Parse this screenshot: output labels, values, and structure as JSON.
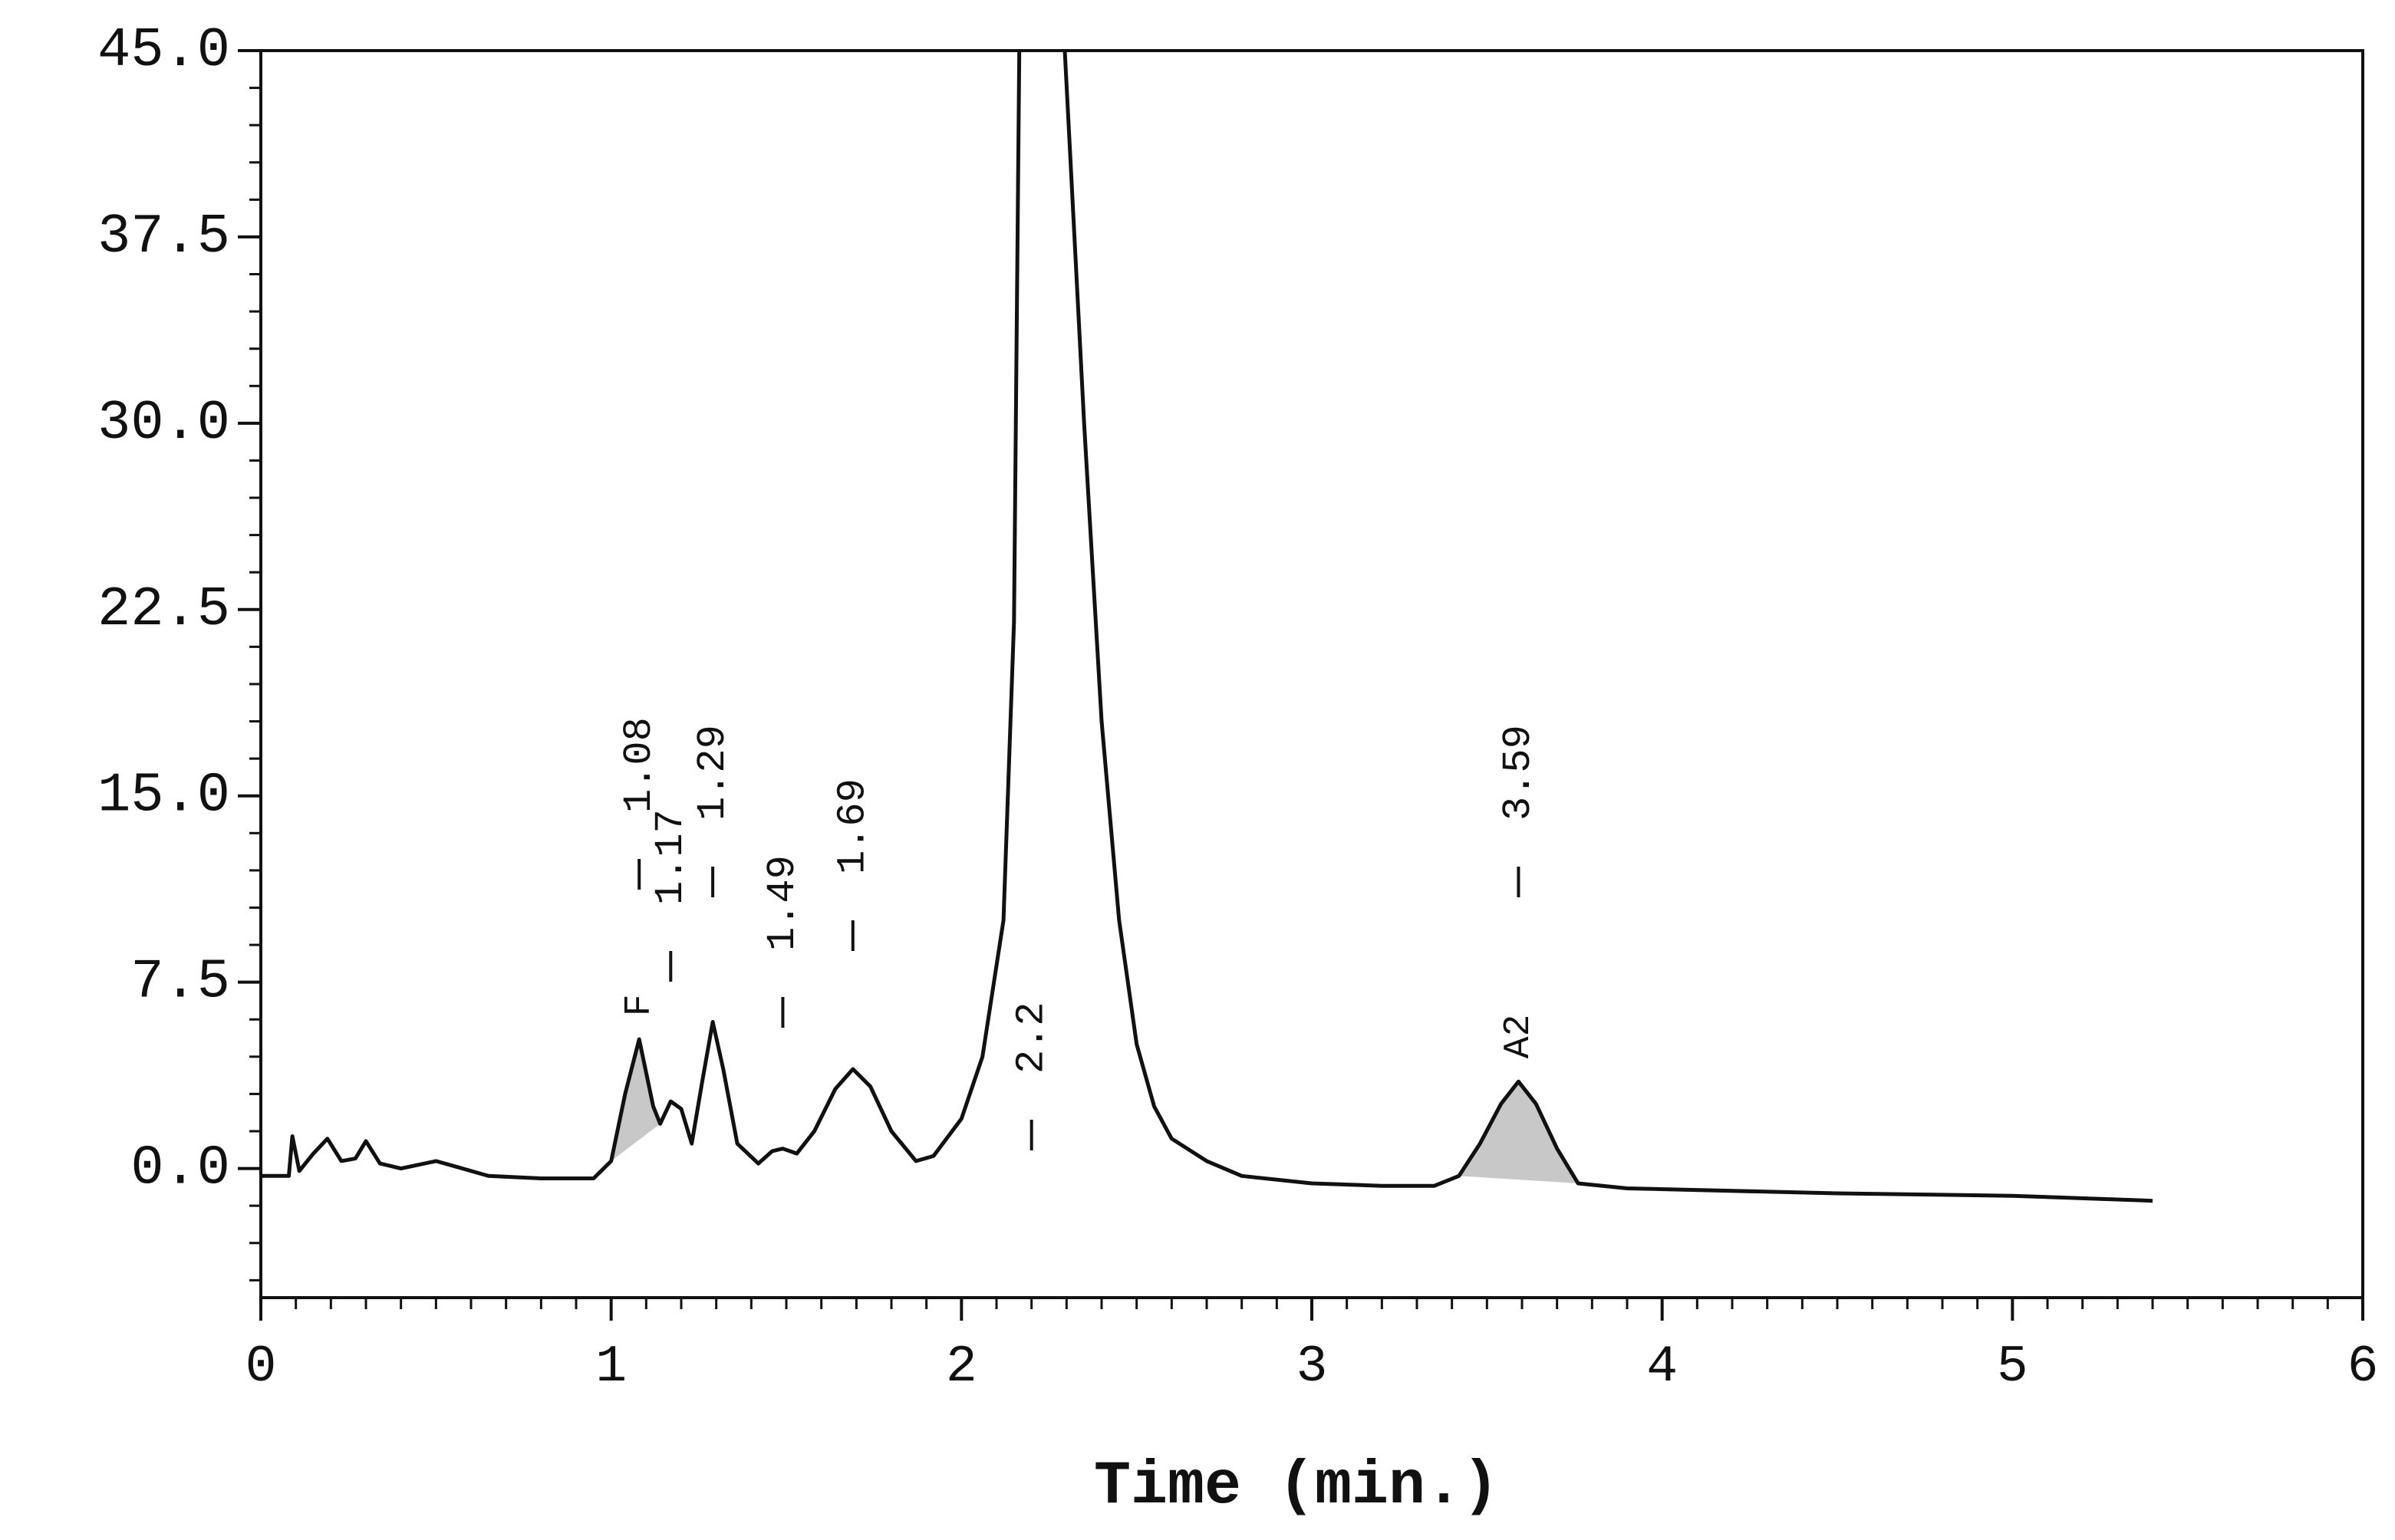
{
  "chart_data": {
    "type": "line",
    "x_label": "Time (min.)",
    "xlim": [
      0,
      6
    ],
    "xticks": [
      0,
      1,
      2,
      3,
      4,
      5,
      6
    ],
    "ylim": [
      -5.2,
      45
    ],
    "yticks": [
      {
        "value": 0,
        "label": "0.0"
      },
      {
        "value": 7.5,
        "label": "7.5"
      },
      {
        "value": 15,
        "label": "15.0"
      },
      {
        "value": 22.5,
        "label": "22.5"
      },
      {
        "value": 30,
        "label": "30.0"
      },
      {
        "value": 37.5,
        "label": "37.5"
      },
      {
        "value": 45,
        "label": "45.0"
      }
    ],
    "color": "#111111",
    "shade_color": "#c8c8c8",
    "series": [
      {
        "x": [
          0,
          0.08,
          0.09,
          0.11,
          0.15,
          0.19,
          0.23,
          0.27,
          0.3,
          0.34,
          0.4,
          0.5,
          0.55,
          0.65,
          0.8,
          0.95,
          1.0,
          1.04,
          1.08,
          1.12,
          1.14,
          1.17,
          1.2,
          1.23,
          1.26,
          1.29,
          1.32,
          1.36,
          1.42,
          1.46,
          1.49,
          1.53,
          1.58,
          1.64,
          1.69,
          1.74,
          1.8,
          1.87,
          1.92,
          2.0,
          2.06,
          2.12,
          2.15,
          2.165,
          2.23,
          2.295,
          2.35,
          2.4,
          2.45,
          2.5,
          2.55,
          2.6,
          2.7,
          2.8,
          3.0,
          3.2,
          3.35,
          3.42,
          3.48,
          3.54,
          3.59,
          3.64,
          3.7,
          3.76,
          3.9,
          4.5,
          5.0,
          5.4
        ],
        "values": [
          -0.3,
          -0.3,
          1.3,
          -0.1,
          0.6,
          1.2,
          0.3,
          0.4,
          1.1,
          0.2,
          0.0,
          0.3,
          0.1,
          -0.3,
          -0.4,
          -0.4,
          0.3,
          3,
          5.2,
          2.5,
          1.8,
          2.7,
          2.4,
          1.0,
          3.5,
          5.9,
          4,
          1.0,
          0.2,
          0.7,
          0.8,
          0.6,
          1.5,
          3.2,
          4,
          3.3,
          1.5,
          0.3,
          0.5,
          2,
          4.5,
          10,
          22,
          45,
          null,
          45,
          30,
          18,
          10,
          5,
          2.5,
          1.2,
          0.3,
          -0.3,
          -0.6,
          -0.7,
          -0.7,
          -0.3,
          1,
          2.6,
          3.5,
          2.6,
          0.8,
          -0.6,
          -0.8,
          -1.0,
          -1.1,
          -1.3
        ]
      }
    ],
    "shaded": [
      [
        1.0,
        1.14
      ],
      [
        3.42,
        3.76
      ]
    ],
    "peak_times": [
      1.08,
      1.17,
      1.29,
      1.49,
      1.69,
      2.2,
      3.59
    ],
    "peak_names": [
      {
        "x": 1.08,
        "name": "F"
      },
      {
        "x": 3.59,
        "name": "A2"
      }
    ]
  }
}
